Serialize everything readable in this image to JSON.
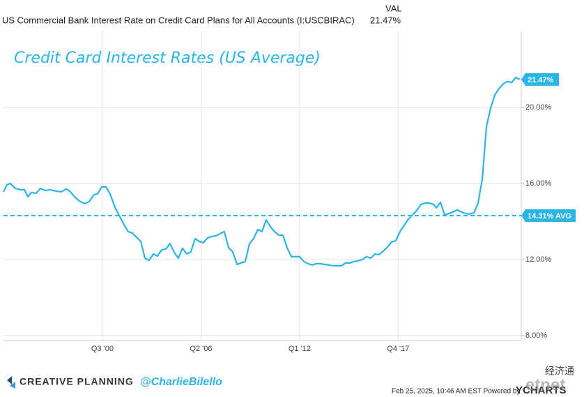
{
  "chart_data": {
    "type": "line",
    "title": "Credit Card Interest Rates (US Average)",
    "value_header": "VAL",
    "series": [
      {
        "name": "US Commercial Bank Interest Rate on Credit Card Plans for All Accounts (I:USCBIRAC)",
        "color": "#29b5e8",
        "last_value_label": "21.47%",
        "values": [
          15.56,
          15.93,
          16.0,
          15.74,
          15.67,
          15.67,
          15.3,
          15.52,
          15.49,
          15.74,
          15.63,
          15.67,
          15.6,
          15.56,
          15.71,
          15.6,
          15.27,
          15.05,
          14.94,
          15.05,
          15.41,
          15.45,
          15.82,
          15.82,
          15.45,
          14.75,
          14.24,
          13.83,
          13.47,
          13.39,
          13.17,
          12.95,
          12.07,
          11.96,
          12.29,
          12.18,
          12.51,
          12.55,
          12.84,
          12.37,
          12.07,
          12.59,
          12.29,
          12.4,
          13.1,
          12.95,
          12.88,
          13.14,
          13.21,
          13.25,
          13.36,
          13.47,
          12.62,
          12.4,
          11.74,
          11.82,
          11.89,
          12.84,
          13.1,
          13.58,
          13.47,
          14.09,
          13.72,
          13.47,
          13.28,
          13.28,
          12.62,
          12.15,
          12.15,
          12.15,
          11.89,
          11.78,
          11.71,
          11.78,
          11.78,
          11.74,
          11.71,
          11.67,
          11.67,
          11.67,
          11.82,
          11.82,
          11.89,
          11.93,
          12.0,
          12.15,
          12.07,
          12.29,
          12.26,
          12.44,
          12.66,
          12.92,
          12.99,
          13.47,
          13.8,
          14.13,
          14.35,
          14.57,
          14.9,
          14.97,
          14.97,
          14.9,
          14.72,
          15.01,
          14.35,
          14.42,
          14.5,
          14.61,
          14.5,
          14.42,
          14.39,
          14.46,
          14.97,
          16.26,
          19.01,
          19.96,
          20.66,
          20.99,
          21.25,
          21.36,
          21.32,
          21.58,
          21.47
        ]
      }
    ],
    "x": [
      1994.73,
      1994.93,
      1995.13,
      1995.42,
      1995.74,
      1995.95,
      1996.15,
      1996.35,
      1996.64,
      1996.88,
      1997.17,
      1997.45,
      1997.78,
      1998.1,
      1998.39,
      1998.59,
      1998.91,
      1999.2,
      1999.48,
      1999.73,
      2000.01,
      2000.22,
      2000.46,
      2000.7,
      2000.95,
      2001.23,
      2001.52,
      2001.76,
      2002.0,
      2002.25,
      2002.49,
      2002.74,
      2002.98,
      2003.22,
      2003.47,
      2003.71,
      2003.96,
      2004.2,
      2004.44,
      2004.69,
      2004.93,
      2005.17,
      2005.42,
      2005.66,
      2005.91,
      2006.15,
      2006.39,
      2006.64,
      2006.88,
      2007.13,
      2007.37,
      2007.61,
      2007.86,
      2008.1,
      2008.35,
      2008.59,
      2008.83,
      2009.08,
      2009.32,
      2009.57,
      2009.81,
      2010.05,
      2010.3,
      2010.54,
      2010.78,
      2011.03,
      2011.27,
      2011.52,
      2011.76,
      2012.0,
      2012.25,
      2012.49,
      2012.74,
      2012.98,
      2013.22,
      2013.47,
      2013.71,
      2013.96,
      2014.2,
      2014.44,
      2014.69,
      2014.93,
      2015.17,
      2015.42,
      2015.66,
      2015.91,
      2016.15,
      2016.39,
      2016.64,
      2016.88,
      2017.13,
      2017.37,
      2017.61,
      2017.86,
      2018.1,
      2018.35,
      2018.59,
      2018.83,
      2019.08,
      2019.32,
      2019.57,
      2019.81,
      2019.97,
      2020.22,
      2020.46,
      2020.71,
      2020.95,
      2021.19,
      2021.44,
      2021.68,
      2021.92,
      2022.17,
      2022.41,
      2022.66,
      2022.9,
      2023.14,
      2023.39,
      2023.63,
      2023.88,
      2024.12,
      2024.37,
      2024.61,
      2024.85
    ],
    "xlim": [
      1994.73,
      2024.93
    ],
    "xticks": [
      {
        "value": 2000.5,
        "label": "Q3 '00"
      },
      {
        "value": 2006.25,
        "label": "Q2 '06"
      },
      {
        "value": 2012,
        "label": "Q1 '12"
      },
      {
        "value": 2017.75,
        "label": "Q4 '17"
      }
    ],
    "ylim": [
      7.74,
      24
    ],
    "yticks": [
      {
        "value": 8,
        "label": "8.00%"
      },
      {
        "value": 12,
        "label": "12.00%"
      },
      {
        "value": 16,
        "label": "16.00%"
      },
      {
        "value": 20,
        "label": "20.00%"
      }
    ],
    "average": 14.31,
    "average_label": "14.31% AVG",
    "grid": true,
    "footer": {
      "brand": "CREATIVE PLANNING",
      "handle": "@CharlieBilello",
      "timestamp": "Feb 25, 2025, 10:46 AM EST Powered by",
      "provider": "YCHARTS",
      "watermark_cn": "经济通",
      "watermark": "etnet"
    }
  }
}
